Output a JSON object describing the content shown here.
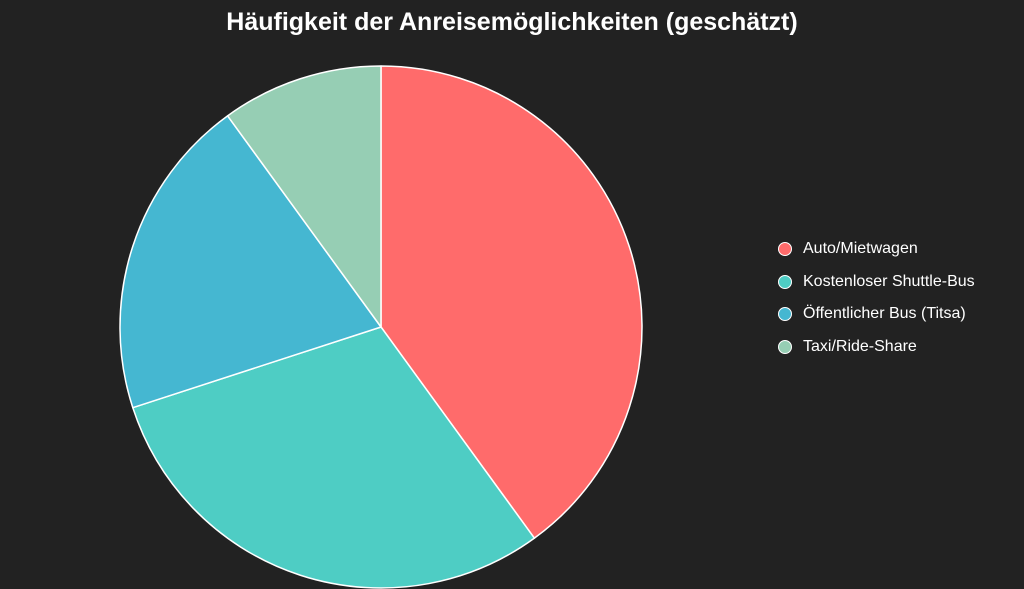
{
  "chart_data": {
    "type": "pie",
    "title": "Häufigkeit der Anreisemöglichkeiten (geschätzt)",
    "categories": [
      "Auto/Mietwagen",
      "Kostenloser Shuttle-Bus",
      "Öffentlicher Bus (Titsa)",
      "Taxi/Ride-Share"
    ],
    "values": [
      40,
      30,
      20,
      10
    ],
    "colors": [
      "#ff6b6b",
      "#4ecdc4",
      "#45b7d1",
      "#96ceb4"
    ],
    "slice_border_color": "#ffffff",
    "background_color": "#222222",
    "start_angle": "top",
    "direction": "clockwise",
    "legend_position": "right",
    "data_labels": false
  }
}
